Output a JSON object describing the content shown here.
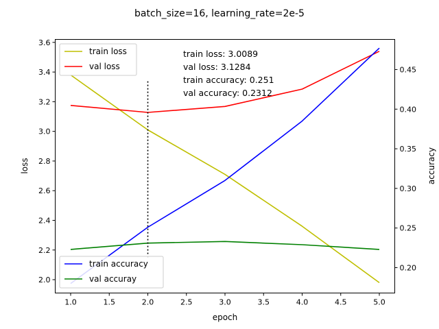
{
  "chart_data": {
    "type": "line",
    "title": "batch_size=16, learning_rate=2e-5",
    "xlabel": "epoch",
    "ylabel_left": "loss",
    "ylabel_right": "accuracy",
    "x": [
      1.0,
      2.0,
      3.0,
      4.0,
      5.0
    ],
    "x_ticks": [
      "1.0",
      "1.5",
      "2.0",
      "2.5",
      "3.0",
      "3.5",
      "4.0",
      "4.5",
      "5.0"
    ],
    "left_ticks": [
      "2.0",
      "2.2",
      "2.4",
      "2.6",
      "2.8",
      "3.0",
      "3.2",
      "3.4",
      "3.6"
    ],
    "right_ticks": [
      "0.20",
      "0.25",
      "0.30",
      "0.35",
      "0.40",
      "0.45"
    ],
    "xlim": [
      0.8,
      5.2
    ],
    "ylim_left": [
      1.91,
      3.62
    ],
    "ylim_right": [
      0.168,
      0.488
    ],
    "series_left": [
      {
        "name": "train loss",
        "color": "#bfbf00",
        "values": [
          3.38,
          3.01,
          2.71,
          2.36,
          1.98
        ]
      },
      {
        "name": "val loss",
        "color": "#ff0000",
        "values": [
          3.175,
          3.128,
          3.168,
          3.285,
          3.54
        ]
      }
    ],
    "series_right": [
      {
        "name": "train accuracy",
        "color": "#0000ff",
        "values": [
          0.18,
          0.251,
          0.31,
          0.385,
          0.477
        ]
      },
      {
        "name": "val accuray",
        "color": "#008000",
        "values": [
          0.223,
          0.231,
          0.233,
          0.229,
          0.223
        ]
      }
    ],
    "vline": {
      "x": 2.0,
      "ymin": 2.15,
      "ymax": 3.35,
      "style": "dotted"
    },
    "annotation_lines": [
      "train loss: 3.0089",
      "val loss: 3.1284",
      "train accuracy: 0.251",
      "val accuracy: 0.2312"
    ],
    "legend_left_loc": "upper left",
    "legend_right_loc": "lower left",
    "grid": false
  }
}
